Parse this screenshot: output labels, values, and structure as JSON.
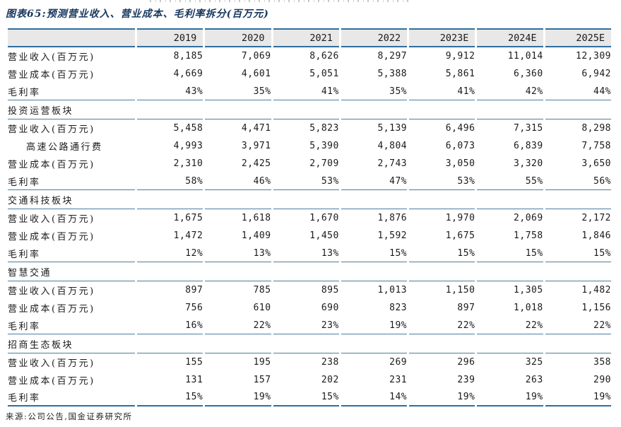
{
  "title": "图表65:预测营业收入、营业成本、毛利率拆分(百万元)",
  "footer": "来源:公司公告,国金证券研究所",
  "colors": {
    "table_line_thin": "#4a7e9e",
    "table_line_thick": "#2f6e9e",
    "header_background": "#e8e8e8",
    "title_text": "#17375e"
  },
  "chart_data": {
    "type": "table",
    "columns": [
      "2019",
      "2020",
      "2021",
      "2022",
      "2023E",
      "2024E",
      "2025E"
    ],
    "sections": [
      {
        "title": "",
        "rows": [
          {
            "label": "营业收入(百万元)",
            "indent": false,
            "values": [
              "8,185",
              "7,069",
              "8,626",
              "8,297",
              "9,912",
              "11,014",
              "12,309"
            ]
          },
          {
            "label": "营业成本(百万元)",
            "indent": false,
            "values": [
              "4,669",
              "4,601",
              "5,051",
              "5,388",
              "5,861",
              "6,360",
              "6,942"
            ]
          },
          {
            "label": "毛利率",
            "indent": false,
            "values": [
              "43%",
              "35%",
              "41%",
              "35%",
              "41%",
              "42%",
              "44%"
            ]
          }
        ]
      },
      {
        "title": "投资运营板块",
        "rows": [
          {
            "label": "营业收入(百万元)",
            "indent": false,
            "values": [
              "5,458",
              "4,471",
              "5,823",
              "5,139",
              "6,496",
              "7,315",
              "8,298"
            ]
          },
          {
            "label": "高速公路通行费",
            "indent": true,
            "values": [
              "4,993",
              "3,971",
              "5,390",
              "4,804",
              "6,073",
              "6,839",
              "7,758"
            ]
          },
          {
            "label": "营业成本(百万元)",
            "indent": false,
            "values": [
              "2,310",
              "2,425",
              "2,709",
              "2,743",
              "3,050",
              "3,320",
              "3,650"
            ]
          },
          {
            "label": "毛利率",
            "indent": false,
            "values": [
              "58%",
              "46%",
              "53%",
              "47%",
              "53%",
              "55%",
              "56%"
            ]
          }
        ]
      },
      {
        "title": "交通科技板块",
        "rows": [
          {
            "label": "营业收入(百万元)",
            "indent": false,
            "values": [
              "1,675",
              "1,618",
              "1,670",
              "1,876",
              "1,970",
              "2,069",
              "2,172"
            ]
          },
          {
            "label": "营业成本(百万元)",
            "indent": false,
            "values": [
              "1,472",
              "1,409",
              "1,450",
              "1,592",
              "1,675",
              "1,758",
              "1,846"
            ]
          },
          {
            "label": "毛利率",
            "indent": false,
            "values": [
              "12%",
              "13%",
              "13%",
              "15%",
              "15%",
              "15%",
              "15%"
            ]
          }
        ]
      },
      {
        "title": "智慧交通",
        "rows": [
          {
            "label": "营业收入(百万元)",
            "indent": false,
            "values": [
              "897",
              "785",
              "895",
              "1,013",
              "1,150",
              "1,305",
              "1,482"
            ]
          },
          {
            "label": "营业成本(百万元)",
            "indent": false,
            "values": [
              "756",
              "610",
              "690",
              "823",
              "897",
              "1,018",
              "1,156"
            ]
          },
          {
            "label": "毛利率",
            "indent": false,
            "values": [
              "16%",
              "22%",
              "23%",
              "19%",
              "22%",
              "22%",
              "22%"
            ]
          }
        ]
      },
      {
        "title": "招商生态板块",
        "rows": [
          {
            "label": "营业收入(百万元)",
            "indent": false,
            "values": [
              "155",
              "195",
              "238",
              "269",
              "296",
              "325",
              "358"
            ]
          },
          {
            "label": "营业成本(百万元)",
            "indent": false,
            "values": [
              "131",
              "157",
              "202",
              "231",
              "239",
              "263",
              "290"
            ]
          },
          {
            "label": "毛利率",
            "indent": false,
            "values": [
              "15%",
              "19%",
              "15%",
              "14%",
              "19%",
              "19%",
              "19%"
            ]
          }
        ]
      }
    ]
  }
}
